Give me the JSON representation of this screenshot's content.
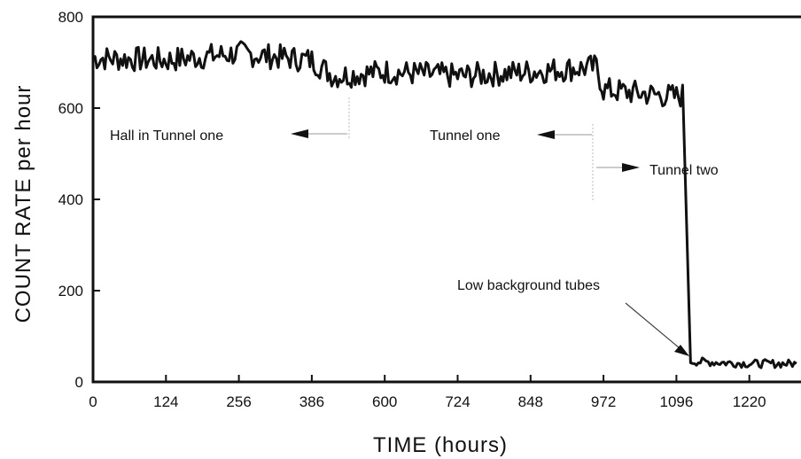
{
  "chart_data": {
    "type": "line",
    "title": "",
    "xlabel": "TIME (hours)",
    "ylabel": "COUNT RATE per hour",
    "x_tick_labels": [
      "0",
      "124",
      "256",
      "386",
      "600",
      "724",
      "848",
      "972",
      "1096",
      "1220"
    ],
    "y_ticks": [
      0,
      200,
      400,
      600,
      800
    ],
    "ylim": [
      0,
      800
    ],
    "grid": false,
    "legend": "none",
    "line_color": "#111111",
    "series": [
      {
        "values": [
          {
            "x": 0,
            "y": 710
          },
          {
            "x": 124,
            "y": 705
          },
          {
            "x": 256,
            "y": 720
          },
          {
            "x": 386,
            "y": 705
          },
          {
            "x": 450,
            "y": 670
          },
          {
            "x": 600,
            "y": 680
          },
          {
            "x": 724,
            "y": 670
          },
          {
            "x": 848,
            "y": 680
          },
          {
            "x": 960,
            "y": 690
          },
          {
            "x": 972,
            "y": 640
          },
          {
            "x": 1096,
            "y": 625
          },
          {
            "x": 1110,
            "y": 630
          },
          {
            "x": 1120,
            "y": 45
          },
          {
            "x": 1220,
            "y": 40
          },
          {
            "x": 1300,
            "y": 40
          }
        ]
      }
    ],
    "annotations": [
      "Hall in Tunnel one",
      "Tunnel one",
      "Tunnel two",
      "Low background tubes"
    ]
  }
}
